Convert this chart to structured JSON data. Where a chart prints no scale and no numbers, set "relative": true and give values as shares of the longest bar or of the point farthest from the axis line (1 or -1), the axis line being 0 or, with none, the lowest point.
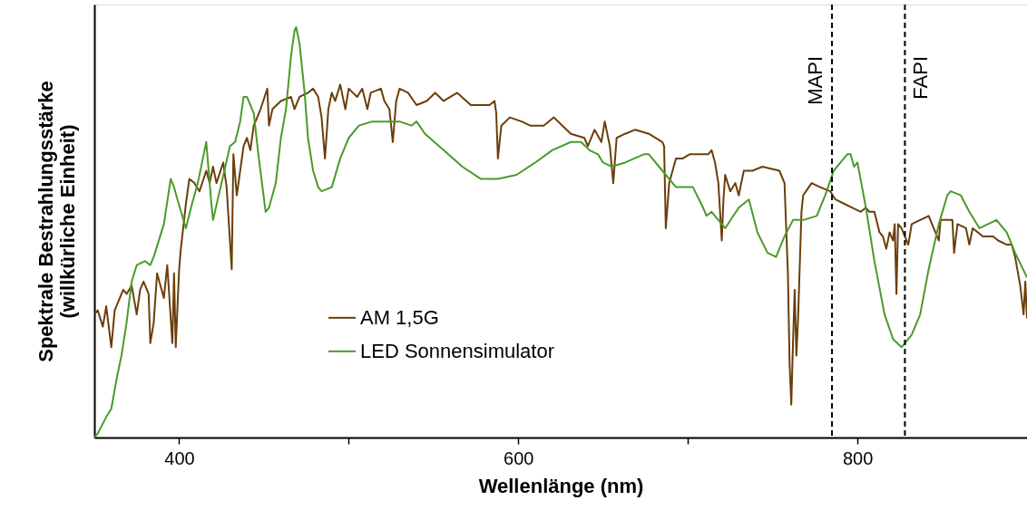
{
  "chart_data": {
    "type": "line",
    "relative": true,
    "xlabel": "Wellenlänge (nm)",
    "ylabel": "Spektrale Bestrahlungsstärke (willkürliche Einheit)",
    "xlim": [
      350,
      900
    ],
    "xticks": [
      400,
      {
        "value": 500,
        "label": null
      },
      600,
      {
        "value": 700,
        "label": null
      },
      800
    ],
    "legend": "bottom left",
    "grid": false,
    "marker": "none",
    "line_style": "solid",
    "ref_lines": [
      {
        "axis": "x",
        "value": 785,
        "label": "MAPI",
        "color": "#000000",
        "line_style": "dashed"
      },
      {
        "axis": "x",
        "value": 828,
        "label": "FAPI",
        "color": "#000000",
        "line_style": "dashed"
      }
    ],
    "series": [
      {
        "name": "AM 1,5G",
        "color": "#6b3e0a",
        "x": [
          350,
          352,
          355,
          357,
          360,
          362,
          367,
          369,
          372,
          375,
          377,
          379,
          382,
          383,
          385,
          387,
          391,
          393,
          396,
          397,
          398,
          400,
          401,
          404,
          406,
          409,
          412,
          416,
          418,
          420,
          422,
          426,
          428,
          431,
          432,
          434,
          438,
          440,
          442,
          444,
          448,
          452,
          453,
          455,
          460,
          466,
          468,
          471,
          476,
          479,
          482,
          484,
          486,
          488,
          490,
          492,
          495,
          498,
          500,
          505,
          508,
          511,
          513,
          519,
          521,
          524,
          526,
          528,
          530,
          535,
          540,
          546,
          551,
          556,
          564,
          572,
          578,
          583,
          586,
          587,
          588,
          590,
          595,
          602,
          607,
          615,
          621,
          626,
          631,
          639,
          641,
          645,
          649,
          651,
          654,
          656,
          658,
          663,
          669,
          677,
          685,
          686,
          687,
          689,
          693,
          697,
          701,
          706,
          712,
          714,
          716,
          718,
          720,
          721,
          722,
          725,
          728,
          730,
          733,
          738,
          744,
          754,
          757,
          759,
          760,
          761,
          762,
          763,
          764,
          765,
          767,
          768,
          773,
          778,
          784,
          787,
          792,
          797,
          802,
          805,
          807,
          810,
          813,
          815,
          817,
          819,
          821,
          822,
          823,
          824,
          826,
          829,
          830,
          832,
          837,
          842,
          848,
          849,
          856,
          857,
          859,
          864,
          866,
          868,
          874,
          880,
          883,
          888,
          891,
          893,
          896,
          898,
          899,
          900
        ],
        "values": [
          0.3,
          0.31,
          0.27,
          0.32,
          0.22,
          0.31,
          0.36,
          0.35,
          0.37,
          0.3,
          0.36,
          0.38,
          0.35,
          0.23,
          0.28,
          0.4,
          0.34,
          0.42,
          0.23,
          0.4,
          0.22,
          0.41,
          0.46,
          0.57,
          0.63,
          0.62,
          0.6,
          0.65,
          0.62,
          0.66,
          0.62,
          0.67,
          0.61,
          0.41,
          0.69,
          0.59,
          0.71,
          0.73,
          0.7,
          0.76,
          0.8,
          0.85,
          0.76,
          0.8,
          0.82,
          0.83,
          0.8,
          0.83,
          0.84,
          0.85,
          0.83,
          0.78,
          0.68,
          0.8,
          0.84,
          0.82,
          0.86,
          0.8,
          0.85,
          0.83,
          0.85,
          0.8,
          0.84,
          0.85,
          0.82,
          0.8,
          0.72,
          0.82,
          0.85,
          0.84,
          0.81,
          0.82,
          0.84,
          0.82,
          0.84,
          0.81,
          0.81,
          0.81,
          0.82,
          0.79,
          0.68,
          0.76,
          0.78,
          0.77,
          0.76,
          0.76,
          0.78,
          0.76,
          0.74,
          0.73,
          0.71,
          0.75,
          0.72,
          0.77,
          0.71,
          0.62,
          0.73,
          0.74,
          0.75,
          0.74,
          0.72,
          0.71,
          0.51,
          0.62,
          0.68,
          0.68,
          0.69,
          0.69,
          0.69,
          0.7,
          0.67,
          0.62,
          0.48,
          0.58,
          0.64,
          0.6,
          0.62,
          0.59,
          0.65,
          0.65,
          0.66,
          0.65,
          0.62,
          0.4,
          0.18,
          0.08,
          0.23,
          0.36,
          0.2,
          0.29,
          0.55,
          0.59,
          0.62,
          0.61,
          0.6,
          0.58,
          0.57,
          0.56,
          0.55,
          0.56,
          0.55,
          0.55,
          0.5,
          0.49,
          0.46,
          0.5,
          0.48,
          0.52,
          0.35,
          0.52,
          0.51,
          0.48,
          0.47,
          0.52,
          0.53,
          0.54,
          0.48,
          0.53,
          0.53,
          0.45,
          0.52,
          0.51,
          0.47,
          0.51,
          0.49,
          0.49,
          0.48,
          0.47,
          0.47,
          0.44,
          0.37,
          0.3,
          0.38,
          0.29
        ]
      },
      {
        "name": "LED Sonnensimulator",
        "color": "#4a9a2a",
        "x": [
          350,
          352,
          357,
          360,
          363,
          366,
          369,
          372,
          375,
          380,
          383,
          385,
          391,
          395,
          397,
          399,
          404,
          407,
          411,
          414,
          416,
          419,
          420,
          425,
          430,
          433,
          436,
          438,
          440,
          444,
          447,
          451,
          453,
          457,
          460,
          463,
          466,
          468,
          469,
          471,
          474,
          476,
          479,
          482,
          484,
          490,
          495,
          500,
          506,
          514,
          521,
          530,
          537,
          540,
          545,
          556,
          567,
          578,
          588,
          599,
          610,
          620,
          631,
          637,
          642,
          647,
          650,
          655,
          663,
          674,
          677,
          685,
          693,
          703,
          709,
          711,
          714,
          722,
          730,
          736,
          741,
          747,
          752,
          757,
          762,
          768,
          776,
          781,
          786,
          792,
          794,
          796,
          798,
          800,
          805,
          810,
          816,
          821,
          826,
          832,
          837,
          842,
          848,
          853,
          855,
          861,
          866,
          872,
          877,
          882,
          888,
          893,
          900
        ],
        "values": [
          0,
          0.01,
          0.05,
          0.07,
          0.14,
          0.2,
          0.28,
          0.38,
          0.42,
          0.43,
          0.42,
          0.44,
          0.52,
          0.63,
          0.61,
          0.58,
          0.51,
          0.56,
          0.62,
          0.68,
          0.72,
          0.57,
          0.53,
          0.62,
          0.71,
          0.72,
          0.77,
          0.83,
          0.83,
          0.79,
          0.68,
          0.55,
          0.56,
          0.62,
          0.73,
          0.8,
          0.93,
          0.99,
          1.0,
          0.96,
          0.84,
          0.73,
          0.65,
          0.61,
          0.6,
          0.61,
          0.68,
          0.73,
          0.76,
          0.77,
          0.77,
          0.77,
          0.76,
          0.77,
          0.74,
          0.7,
          0.66,
          0.63,
          0.63,
          0.64,
          0.67,
          0.7,
          0.72,
          0.72,
          0.7,
          0.69,
          0.67,
          0.66,
          0.67,
          0.69,
          0.69,
          0.65,
          0.61,
          0.61,
          0.56,
          0.54,
          0.55,
          0.51,
          0.56,
          0.58,
          0.5,
          0.45,
          0.44,
          0.49,
          0.53,
          0.53,
          0.54,
          0.59,
          0.65,
          0.68,
          0.69,
          0.69,
          0.66,
          0.67,
          0.56,
          0.43,
          0.3,
          0.24,
          0.22,
          0.25,
          0.3,
          0.41,
          0.52,
          0.59,
          0.6,
          0.59,
          0.55,
          0.51,
          0.52,
          0.53,
          0.5,
          0.45,
          0.39
        ]
      }
    ]
  }
}
